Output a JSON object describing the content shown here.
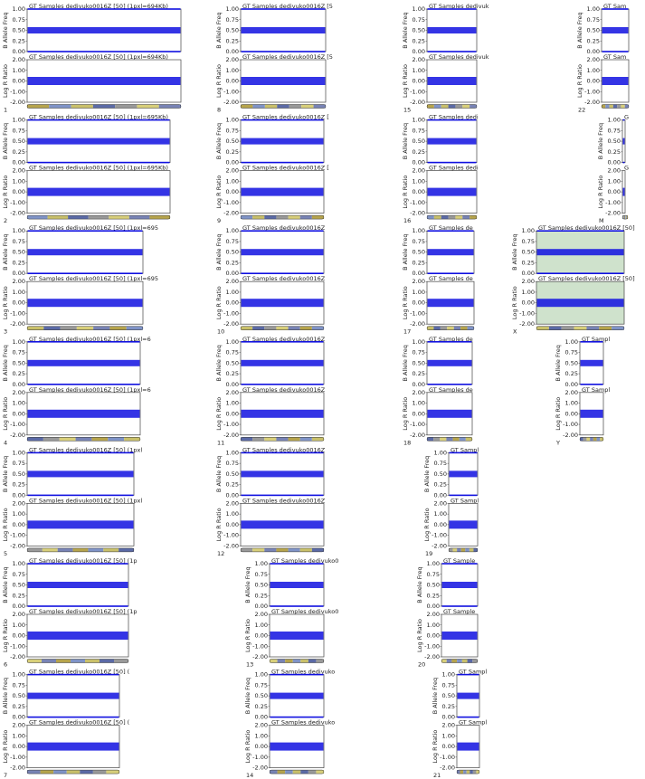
{
  "chart_data": {
    "type": "scatter",
    "baf_axis_label": "B Allele Freq",
    "lrr_axis_label": "Log R Ratio",
    "baf_ylim": [
      0,
      1
    ],
    "baf_yticks": [
      {
        "value": 1,
        "label": "1.00"
      },
      {
        "value": 0.75,
        "label": "0.75"
      },
      {
        "value": 0.5,
        "label": "0.50"
      },
      {
        "value": 0.25,
        "label": "0.25"
      },
      {
        "value": 0,
        "label": "0.00"
      }
    ],
    "lrr_ylim": [
      -2,
      2
    ],
    "lrr_yticks": [
      {
        "value": 2,
        "label": "2.00"
      },
      {
        "value": 1,
        "label": "1.00"
      },
      {
        "value": 0,
        "label": "0.00"
      },
      {
        "value": -1,
        "label": "-1.00"
      },
      {
        "value": -2,
        "label": "-2.00"
      }
    ],
    "baf_clusters": [
      0,
      0.5,
      1
    ],
    "lrr_clusters": [
      0
    ],
    "color": "#1010e0",
    "panels": [
      {
        "chromosome": "1",
        "title": "GT Samples dedivuko0016Z [50] (1pxl=694Kb)"
      },
      {
        "chromosome": "2",
        "title": "GT Samples dedivuko0016Z [50] (1pxl=695Kb)"
      },
      {
        "chromosome": "3",
        "title": "GT Samples dedivuko0016Z [50] (1pxl=695"
      },
      {
        "chromosome": "4",
        "title": "GT Samples dedivuko0016Z [50] (1pxl=6"
      },
      {
        "chromosome": "5",
        "title": "GT Samples dedivuko0016Z [50] (1pxl"
      },
      {
        "chromosome": "6",
        "title": "GT Samples dedivuko0016Z [50] (1p"
      },
      {
        "chromosome": "7",
        "title": "GT Samples dedivuko0016Z [50] ("
      },
      {
        "chromosome": "8",
        "title": "GT Samples dedivuko0016Z [5"
      },
      {
        "chromosome": "9",
        "title": "GT Samples dedivuko0016Z ["
      },
      {
        "chromosome": "10",
        "title": "GT Samples dedivuko0016Z"
      },
      {
        "chromosome": "11",
        "title": "GT Samples dedivuko0016Z"
      },
      {
        "chromosome": "12",
        "title": "GT Samples dedivuko0016Z"
      },
      {
        "chromosome": "13",
        "title": "GT Samples dedivuko0"
      },
      {
        "chromosome": "14",
        "title": "GT Samples dedivuko"
      },
      {
        "chromosome": "15",
        "title": "GT Samples dedivuk"
      },
      {
        "chromosome": "16",
        "title": "GT Samples dedi"
      },
      {
        "chromosome": "17",
        "title": "GT Samples de"
      },
      {
        "chromosome": "18",
        "title": "GT Samples de"
      },
      {
        "chromosome": "19",
        "title": "GT Sampl"
      },
      {
        "chromosome": "20",
        "title": "GT Sample"
      },
      {
        "chromosome": "21",
        "title": "GT Sampl"
      },
      {
        "chromosome": "22",
        "title": "GT Sam"
      },
      {
        "chromosome": "M",
        "title": "G"
      },
      {
        "chromosome": "X",
        "title": "GT Samples dedivuko0016Z [50]",
        "background": "#cfe2cc"
      },
      {
        "chromosome": "Y",
        "title": "GT Sampl"
      }
    ]
  }
}
